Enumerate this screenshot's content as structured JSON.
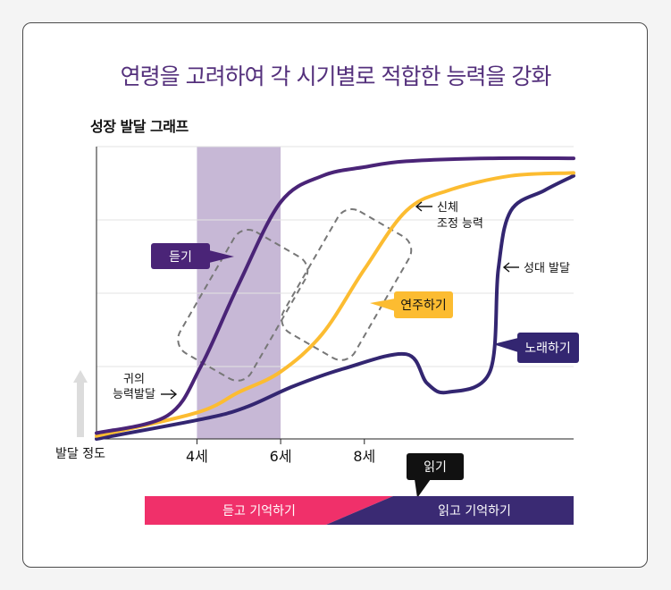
{
  "headline": "연령을 고려하여 각 시기별로 적합한 능력을 강화",
  "subtitle": "성장 발달 그래프",
  "chart_data": {
    "type": "line",
    "x_ticks": [
      {
        "label": "4세",
        "age": 4
      },
      {
        "label": "6세",
        "age": 6
      },
      {
        "label": "8세",
        "age": 8
      }
    ],
    "y_axis_label": "발달 정도",
    "highlight_band": {
      "from_age": 4,
      "to_age": 6
    },
    "series": [
      {
        "name": "귀의 능력발달",
        "color": "#4a2477",
        "points": [
          [
            1.6,
            0.02
          ],
          [
            3.3,
            0.08
          ],
          [
            4.1,
            0.25
          ],
          [
            5,
            0.53
          ],
          [
            6,
            0.81
          ],
          [
            7,
            0.9
          ],
          [
            8,
            0.93
          ],
          [
            9,
            0.95
          ],
          [
            11,
            0.96
          ],
          [
            13,
            0.96
          ]
        ]
      },
      {
        "name": "신체 조정 능력",
        "color": "#fcbc31",
        "points": [
          [
            1.6,
            0.01
          ],
          [
            4,
            0.09
          ],
          [
            5,
            0.16
          ],
          [
            6,
            0.23
          ],
          [
            7,
            0.36
          ],
          [
            8,
            0.58
          ],
          [
            9,
            0.78
          ],
          [
            10,
            0.85
          ],
          [
            11.5,
            0.9
          ],
          [
            13,
            0.91
          ]
        ]
      },
      {
        "name": "성대 발달",
        "color": "#332671",
        "points": [
          [
            1.6,
            0
          ],
          [
            4.2,
            0.07
          ],
          [
            5.2,
            0.11
          ],
          [
            6.3,
            0.18
          ],
          [
            7.5,
            0.24
          ],
          [
            9.0,
            0.29
          ],
          [
            9.5,
            0.19
          ],
          [
            10,
            0.16
          ],
          [
            11,
            0.23
          ],
          [
            11.2,
            0.58
          ],
          [
            11.5,
            0.78
          ],
          [
            12.3,
            0.85
          ],
          [
            13,
            0.9
          ]
        ]
      }
    ],
    "callouts": {
      "hearing": "듣기",
      "playing": "연주하기",
      "singing": "노래하기",
      "ear": [
        "귀의",
        "능력발달"
      ],
      "body": [
        "신체",
        "조정 능력"
      ],
      "vocal": "성대 발달",
      "reading": "읽기"
    },
    "stages": [
      {
        "label": "듣고 기억하기",
        "color": "#f0306a"
      },
      {
        "label": "읽고 기억하기",
        "color": "#3a2a73"
      }
    ],
    "grid": true
  }
}
